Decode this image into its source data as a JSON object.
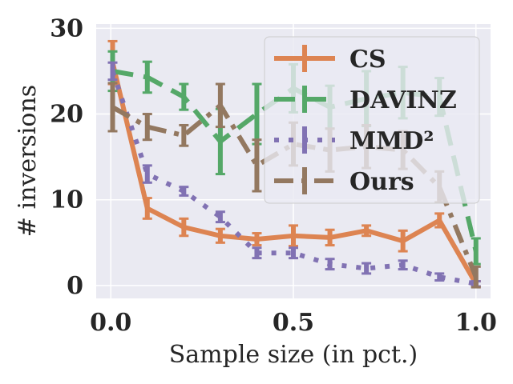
{
  "chart_data": {
    "type": "line",
    "title": "",
    "xlabel": "Sample size (in pct.)",
    "ylabel": "# inversions",
    "xlim": [
      -0.04,
      1.04
    ],
    "ylim": [
      -1.5,
      30.5
    ],
    "xticks": [
      0.0,
      0.5,
      1.0
    ],
    "xtick_labels": [
      "0.0",
      "0.5",
      "1.0"
    ],
    "yticks": [
      0,
      10,
      20,
      30
    ],
    "ytick_labels": [
      "0",
      "10",
      "20",
      "30"
    ],
    "grid": true,
    "legend_position": "top-right",
    "series": [
      {
        "name": "CS",
        "color": "#dd8452",
        "style": "solid",
        "x": [
          0.005,
          0.1,
          0.2,
          0.3,
          0.4,
          0.5,
          0.6,
          0.7,
          0.8,
          0.9,
          1.0
        ],
        "y": [
          26.0,
          9.0,
          6.8,
          5.8,
          5.4,
          5.8,
          5.6,
          6.4,
          5.2,
          7.6,
          0.2
        ],
        "err": [
          2.5,
          1.2,
          1.0,
          0.8,
          0.7,
          1.2,
          0.9,
          0.6,
          1.2,
          0.8,
          0.3
        ]
      },
      {
        "name": "DAVINZ",
        "color": "#55a868",
        "style": "dashed",
        "x": [
          0.005,
          0.1,
          0.2,
          0.3,
          0.4,
          0.5,
          0.6,
          0.7,
          0.8,
          0.9,
          1.0
        ],
        "y": [
          25.0,
          24.3,
          22.0,
          16.8,
          20.0,
          23.0,
          20.8,
          21.8,
          22.5,
          22.0,
          4.0
        ],
        "err": [
          2.3,
          1.8,
          1.5,
          3.8,
          3.5,
          2.8,
          2.5,
          3.2,
          3.0,
          2.2,
          1.5
        ]
      },
      {
        "name": "MMD²",
        "color": "#8172b3",
        "style": "dotted",
        "x": [
          0.005,
          0.1,
          0.2,
          0.3,
          0.4,
          0.5,
          0.6,
          0.7,
          0.8,
          0.9,
          1.0
        ],
        "y": [
          25.0,
          13.0,
          11.0,
          8.0,
          3.8,
          3.8,
          2.5,
          2.0,
          2.4,
          1.0,
          0.2
        ],
        "err": [
          1.0,
          1.0,
          0.5,
          0.6,
          0.6,
          0.6,
          0.6,
          0.6,
          0.5,
          0.4,
          0.3
        ]
      },
      {
        "name": "Ours",
        "color": "#937860",
        "style": "dashdot",
        "x": [
          0.005,
          0.1,
          0.2,
          0.3,
          0.4,
          0.5,
          0.6,
          0.7,
          0.8,
          0.9,
          1.0
        ],
        "y": [
          20.8,
          18.5,
          17.5,
          21.0,
          14.0,
          16.5,
          15.8,
          16.2,
          15.8,
          11.5,
          1.0
        ],
        "err": [
          2.8,
          1.5,
          1.2,
          2.5,
          3.0,
          2.5,
          2.5,
          2.5,
          2.2,
          1.8,
          1.2
        ]
      }
    ]
  }
}
